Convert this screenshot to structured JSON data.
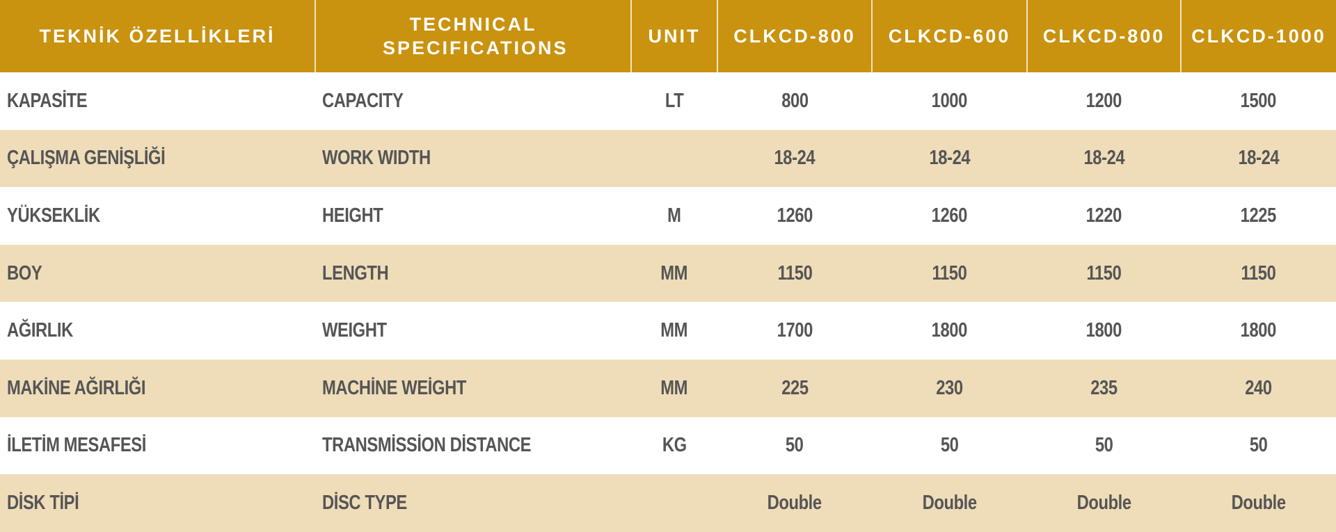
{
  "colors": {
    "header": "#C9920F",
    "stripe": "#EFDDB9",
    "text": "#555555"
  },
  "headers": [
    "TEKNİK ÖZELLİKLERİ",
    "TECHNICAL SPECIFICATIONS",
    "UNIT",
    "CLKCD-800",
    "CLKCD-600",
    "CLKCD-800",
    "CLKCD-1000"
  ],
  "rows": [
    {
      "tr": "KAPASİTE",
      "en": "CAPACITY",
      "unit": "LT",
      "v": [
        "800",
        "1000",
        "1200",
        "1500"
      ]
    },
    {
      "tr": "ÇALIŞMA GENİŞLİĞİ",
      "en": "WORK WIDTH",
      "unit": "",
      "v": [
        "18-24",
        "18-24",
        "18-24",
        "18-24"
      ]
    },
    {
      "tr": "YÜKSEKLİK",
      "en": "HEIGHT",
      "unit": "M",
      "v": [
        "1260",
        "1260",
        "1220",
        "1225"
      ]
    },
    {
      "tr": "BOY",
      "en": "LENGTH",
      "unit": "MM",
      "v": [
        "1150",
        "1150",
        "1150",
        "1150"
      ]
    },
    {
      "tr": "AĞIRLIK",
      "en": "WEIGHT",
      "unit": "MM",
      "v": [
        "1700",
        "1800",
        "1800",
        "1800"
      ]
    },
    {
      "tr": "MAKİNE  AĞIRLIĞI",
      "en": "MACHİNE WEİGHT",
      "unit": "MM",
      "v": [
        "225",
        "230",
        "235",
        "240"
      ]
    },
    {
      "tr": "İLETİM MESAFESİ",
      "en": "TRANSMİSSİON DİSTANCE",
      "unit": "KG",
      "v": [
        "50",
        "50",
        "50",
        "50"
      ]
    },
    {
      "tr": "DİSK TİPİ",
      "en": "DİSC TYPE",
      "unit": "",
      "v": [
        "Double",
        "Double",
        "Double",
        "Double"
      ]
    }
  ]
}
